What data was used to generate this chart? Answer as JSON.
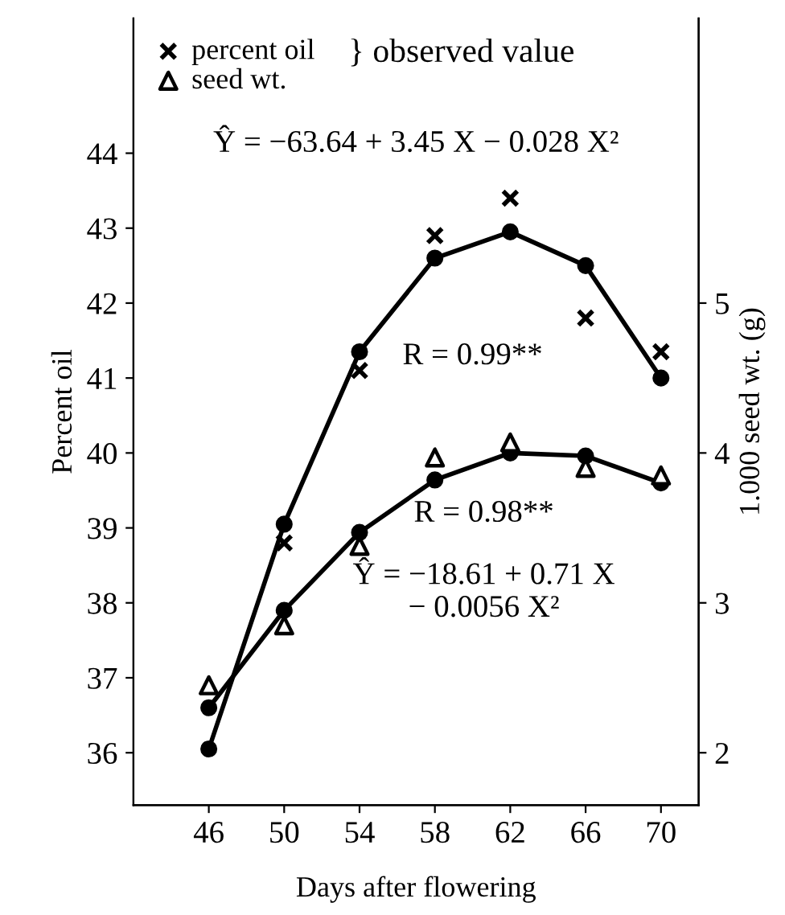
{
  "chart_data": {
    "type": "line",
    "xlabel": "Days after flowering",
    "ylabel": "Percent oil",
    "y2label": "1.000 seed wt. (g)",
    "x": [
      46,
      50,
      54,
      58,
      62,
      66,
      70
    ],
    "xlim": [
      42,
      72
    ],
    "xticks": [
      46,
      50,
      54,
      58,
      62,
      66,
      70
    ],
    "ylim": [
      35.3,
      45.8
    ],
    "yticks": [
      36,
      37,
      38,
      39,
      40,
      41,
      42,
      43,
      44
    ],
    "y2lim": [
      1.65,
      6.9
    ],
    "y2ticks": [
      2,
      3,
      4,
      5
    ],
    "grid": false,
    "legend": "top left",
    "series": [
      {
        "marker": "circle",
        "color": "#000000",
        "values": [
          36.05,
          39.05,
          41.35,
          42.6,
          42.95,
          42.5,
          41.0
        ]
      },
      {
        "name": "percent oil",
        "type": "scatter",
        "marker": "cross",
        "color": "#000000",
        "values": [
          null,
          38.8,
          41.1,
          42.9,
          43.4,
          41.8,
          41.35
        ]
      },
      {
        "marker": "circle",
        "axis": "y2",
        "color": "#000000",
        "values": [
          2.3,
          2.95,
          3.47,
          3.82,
          4.0,
          3.98,
          3.8
        ]
      },
      {
        "name": "seed wt.",
        "type": "scatter",
        "marker": "triangle",
        "axis": "y2",
        "color": "#000000",
        "values": [
          2.45,
          2.85,
          3.38,
          3.97,
          4.07,
          3.9,
          3.85
        ]
      }
    ],
    "annotations": [
      "} observed value",
      "Ŷ = −63.64 + 3.45 X − 0.028 X²",
      "R = 0.99**",
      "R = 0.98**",
      "Ŷ = −18.61 + 0.71 X\n− 0.0056 X²"
    ]
  }
}
